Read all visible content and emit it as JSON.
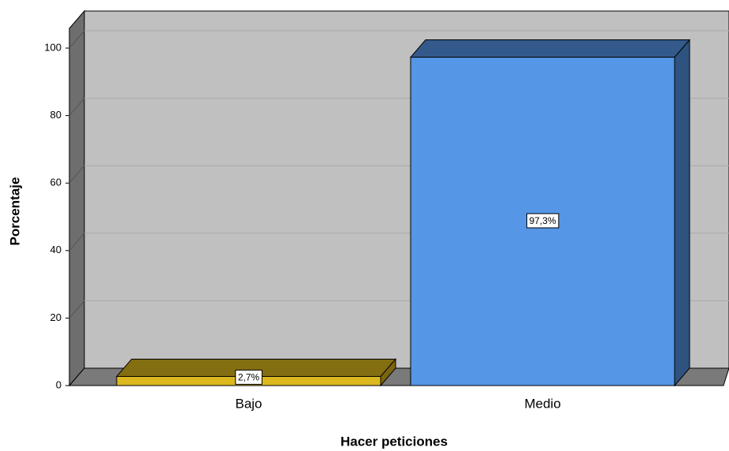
{
  "chart_data": {
    "type": "bar3d",
    "x_label": "Hacer peticiones",
    "y_label": "Porcentaje",
    "categories": [
      "Bajo",
      "Medio"
    ],
    "values": [
      2.7,
      97.3
    ],
    "value_labels": [
      "2,7%",
      "97,3%"
    ],
    "colors": [
      "#dcb81e",
      "#5596e6"
    ],
    "ylim": [
      0,
      100
    ],
    "yticks": [
      0,
      20,
      40,
      60,
      80,
      100
    ],
    "grid": true
  }
}
